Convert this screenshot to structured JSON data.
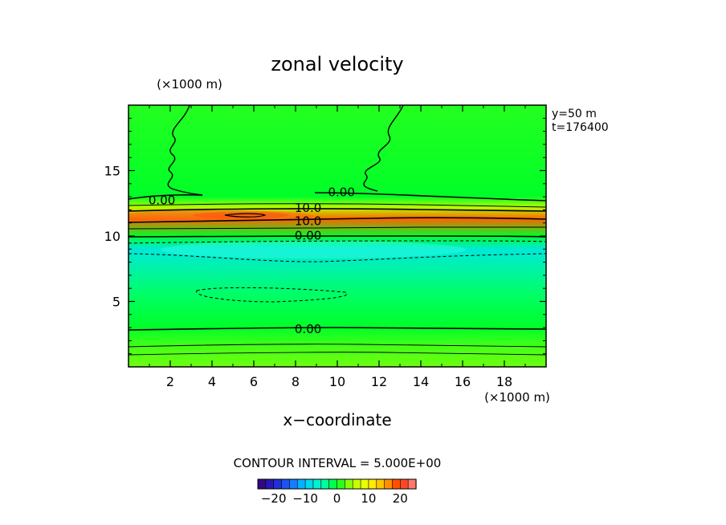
{
  "chart_data": {
    "type": "heatmap",
    "title": "zonal velocity",
    "xlabel": "x−coordinate",
    "ylabel": "",
    "x_units": "(×1000 m)",
    "y_units": "(×1000 m)",
    "xlim": [
      0,
      20
    ],
    "ylim": [
      0,
      20
    ],
    "x_ticks": [
      2,
      4,
      6,
      8,
      10,
      12,
      14,
      16,
      18
    ],
    "y_ticks": [
      5,
      10,
      15
    ],
    "info_lines": [
      "y=50  m",
      "t=176400"
    ],
    "contour_interval_text": "CONTOUR INTERVAL = 5.000E+00",
    "contour_labels": [
      {
        "text": "0.00",
        "x": 1.6,
        "y": 12.8
      },
      {
        "text": "0.00",
        "x": 10.2,
        "y": 13.4
      },
      {
        "text": "10.0",
        "x": 8.6,
        "y": 12.2
      },
      {
        "text": "10.0",
        "x": 8.6,
        "y": 11.2
      },
      {
        "text": "0.00",
        "x": 8.6,
        "y": 10.1
      },
      {
        "text": "0.00",
        "x": 8.6,
        "y": 2.95
      }
    ],
    "colorbar": {
      "range": [
        -25,
        25
      ],
      "tick_values": [
        -20,
        -10,
        0,
        10,
        20
      ],
      "tick_labels": [
        "−20",
        "−10",
        "0",
        "10",
        "20"
      ],
      "n_levels": 20
    },
    "field_summary": [
      {
        "y": 0.0,
        "value": 3
      },
      {
        "y": 1.5,
        "value": 2
      },
      {
        "y": 3.0,
        "value": 0
      },
      {
        "y": 5.5,
        "value": -2
      },
      {
        "y": 9.0,
        "value": -7
      },
      {
        "y": 10.0,
        "value": 0
      },
      {
        "y": 11.3,
        "value": 18
      },
      {
        "y": 12.2,
        "value": 5
      },
      {
        "y": 13.0,
        "value": 0
      },
      {
        "y": 20.0,
        "value": 1
      }
    ],
    "grid": false,
    "legend": "bottom"
  }
}
